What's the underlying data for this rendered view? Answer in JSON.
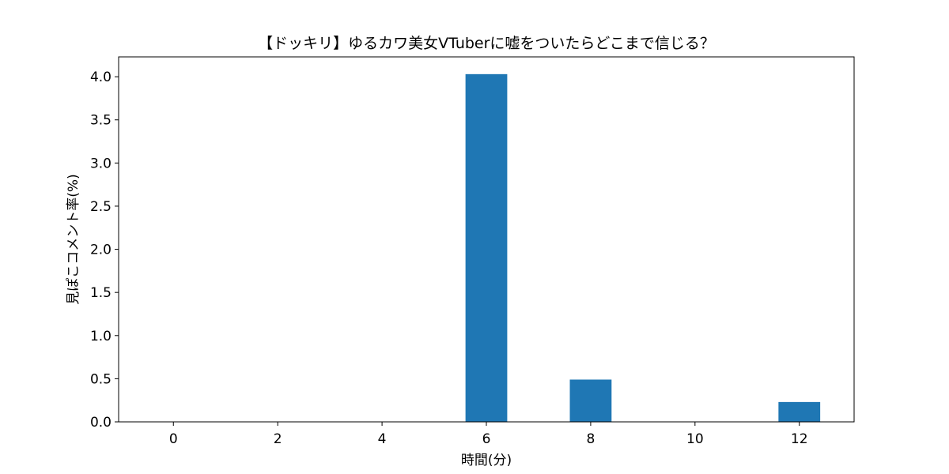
{
  "chart_data": {
    "type": "bar",
    "title": "【ドッキリ】ゆるカワ美女VTuberに嘘をついたらどこまで信じる？",
    "xlabel": "時間(分)",
    "ylabel": "見ぽこコメント率(%)",
    "x": [
      0,
      2,
      4,
      6,
      8,
      10,
      12
    ],
    "values": [
      0,
      0,
      0,
      4.03,
      0.49,
      0,
      0.23
    ],
    "xlim": [
      -1.05,
      13.05
    ],
    "ylim": [
      0,
      4.23
    ],
    "xticks": [
      0,
      2,
      4,
      6,
      8,
      10,
      12
    ],
    "xtick_labels": [
      "0",
      "2",
      "4",
      "6",
      "8",
      "10",
      "12"
    ],
    "yticks": [
      0.0,
      0.5,
      1.0,
      1.5,
      2.0,
      2.5,
      3.0,
      3.5,
      4.0
    ],
    "ytick_labels": [
      "0.0",
      "0.5",
      "1.0",
      "1.5",
      "2.0",
      "2.5",
      "3.0",
      "3.5",
      "4.0"
    ],
    "bar_width": 0.8,
    "bar_color": "#1f77b4",
    "grid": false,
    "legend": "none"
  }
}
